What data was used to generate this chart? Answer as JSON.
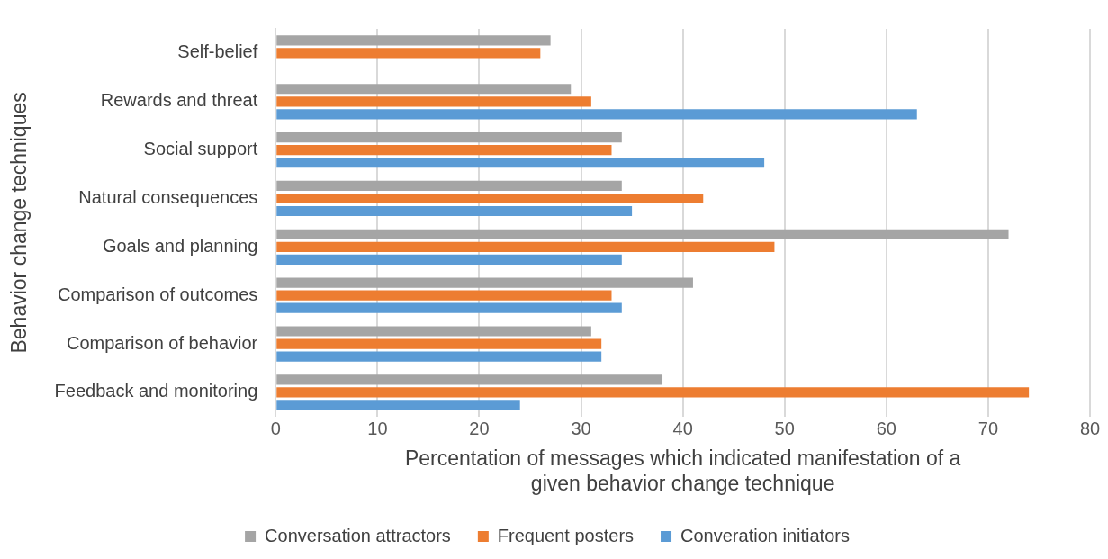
{
  "chart_data": {
    "type": "bar",
    "orientation": "horizontal",
    "xlabel": "Percentation of messages which indicated manifestation of a given behavior change technique",
    "ylabel": "Behavior change techniques",
    "categories": [
      "Self-belief",
      "Rewards and threat",
      "Social support",
      "Natural consequences",
      "Goals and planning",
      "Comparison of outcomes",
      "Comparison of behavior",
      "Feedback and monitoring"
    ],
    "series": [
      {
        "name": "Conversation attractors",
        "color": "#a5a5a5",
        "values": [
          27,
          29,
          34,
          34,
          72,
          41,
          31,
          38
        ]
      },
      {
        "name": "Frequent posters",
        "color": "#ed7d31",
        "values": [
          26,
          31,
          33,
          42,
          49,
          33,
          32,
          74
        ]
      },
      {
        "name": "Converation initiators",
        "color": "#5b9bd5",
        "values": [
          0,
          63,
          48,
          35,
          34,
          34,
          32,
          24
        ]
      }
    ],
    "xlim": [
      0,
      80
    ],
    "xticks": [
      0,
      10,
      20,
      30,
      40,
      50,
      60,
      70,
      80
    ],
    "grid": "x",
    "legend": "bottom"
  }
}
